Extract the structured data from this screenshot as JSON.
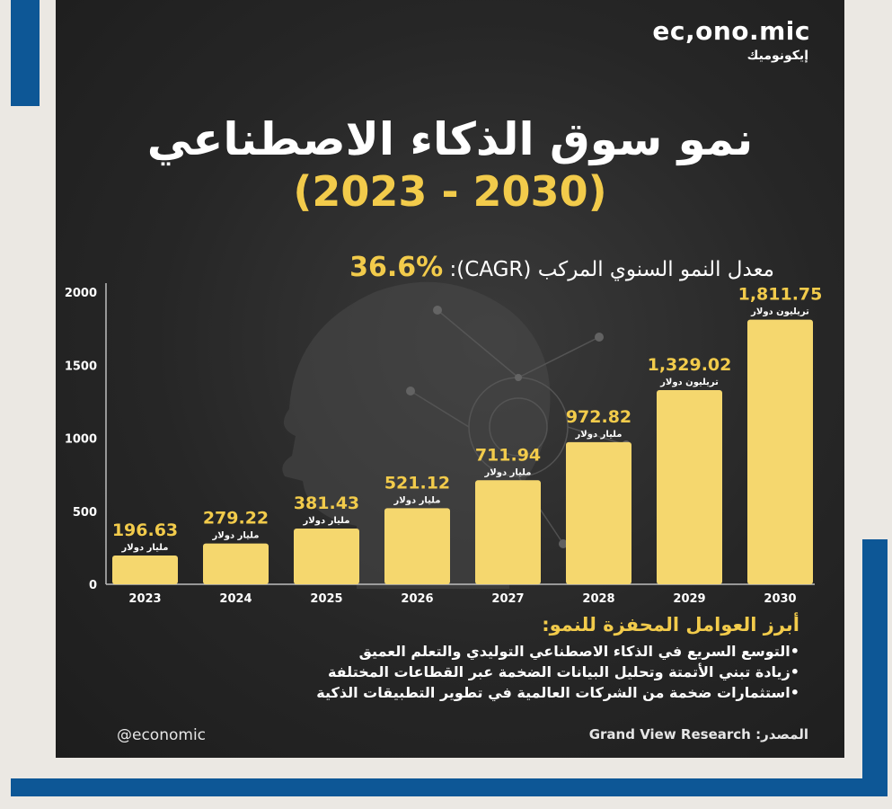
{
  "brand": {
    "logo_en": "ec,ono.mic",
    "logo_ar": "إيكونوميك",
    "handle": "@economic"
  },
  "colors": {
    "accent_blue": "#0d5796",
    "background": "#262626",
    "bar": "#f5d76e",
    "highlight": "#f2cb4b"
  },
  "cagr": {
    "label": "معدل النمو السنوي المركب (CAGR):",
    "value": "36.6%"
  },
  "chart_data": {
    "type": "bar",
    "title": "نمو سوق الذكاء الاصطناعي",
    "subtitle": "(2023 - 2030)",
    "categories": [
      "2023",
      "2024",
      "2025",
      "2026",
      "2027",
      "2028",
      "2029",
      "2030"
    ],
    "values": [
      196.63,
      279.22,
      381.43,
      521.12,
      711.94,
      972.82,
      1329.02,
      1811.75
    ],
    "value_labels": [
      "196.63",
      "279.22",
      "381.43",
      "521.12",
      "711.94",
      "972.82",
      "1,329.02",
      "1,811.75"
    ],
    "unit_labels": [
      "مليار دولار",
      "مليار دولار",
      "مليار دولار",
      "مليار دولار",
      "مليار دولار",
      "مليار دولار",
      "تريليون دولار",
      "تريليون دولار"
    ],
    "yticks": [
      0,
      500,
      1000,
      1500,
      2000
    ],
    "ylim": [
      0,
      2000
    ],
    "grid": false
  },
  "drivers": {
    "title": "أبرز العوامل المحفزة للنمو:",
    "items": [
      "•التوسع السريع في الذكاء الاصطناعي التوليدي والتعلم العميق",
      "•زيادة تبني الأتمتة وتحليل البيانات الضخمة عبر القطاعات المختلفة",
      "•استثمارات ضخمة من الشركات العالمية في تطوير التطبيقات الذكية"
    ]
  },
  "source": {
    "label": "المصدر:",
    "value": "Grand View Research"
  }
}
